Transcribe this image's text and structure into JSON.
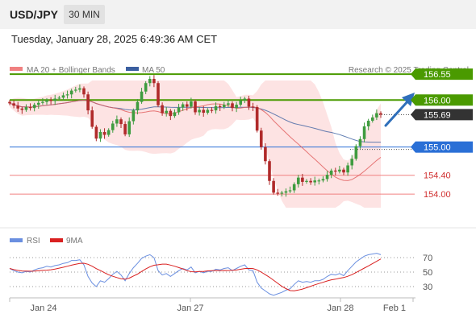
{
  "header": {
    "symbol": "USD/JPY",
    "timeframe": "30 MIN"
  },
  "datetime": "Tuesday, January 28, 2025 6:49:36 AM CET",
  "legend": {
    "ma20_label": "MA 20 + Bollinger Bands",
    "ma50_label": "MA 50",
    "copyright": "Research © 2025 Trading Central",
    "rsi_label": "RSI",
    "rsi_ma_label": "9MA"
  },
  "colors": {
    "up": "#3f9c3f",
    "down": "#b02a2a",
    "ma20": "#e05a5a",
    "ma50": "#3b5fa0",
    "band": "#fde3e3",
    "green_level": "#4a9a00",
    "blue_level": "#2a6fd6",
    "red_level": "#f08080",
    "arrow": "#2f6fba",
    "rsi": "#6a8fe0",
    "rsi_ma": "#d92020"
  },
  "x_axis": [
    "Jan 24",
    "Jan 27",
    "Jan 28",
    "Feb 1"
  ],
  "rsi_levels": [
    "70",
    "50",
    "30"
  ],
  "chart_data": {
    "type": "candlestick",
    "symbol": "USD/JPY",
    "timeframe": "30 MIN",
    "ylim": [
      153.3,
      157.1
    ],
    "price_levels": [
      {
        "value": 156.55,
        "label": "156.55",
        "kind": "resistance"
      },
      {
        "value": 156.0,
        "label": "156.00",
        "kind": "resistance"
      },
      {
        "value": 155.69,
        "label": "155.69",
        "kind": "last_price"
      },
      {
        "value": 155.0,
        "label": "155.00",
        "kind": "pivot"
      },
      {
        "value": 154.4,
        "label": "154.40",
        "kind": "support"
      },
      {
        "value": 154.0,
        "label": "154.00",
        "kind": "support"
      }
    ],
    "close": [
      155.93,
      155.88,
      155.82,
      155.79,
      155.85,
      155.83,
      155.9,
      155.94,
      155.96,
      156.0,
      155.98,
      156.03,
      156.05,
      156.1,
      156.12,
      156.2,
      156.22,
      156.25,
      156.12,
      155.78,
      155.43,
      155.18,
      155.32,
      155.26,
      155.36,
      155.5,
      155.59,
      155.49,
      155.27,
      155.55,
      155.78,
      155.96,
      156.18,
      156.36,
      156.45,
      156.36,
      155.89,
      155.72,
      155.77,
      155.66,
      155.74,
      155.84,
      155.91,
      155.86,
      155.97,
      155.74,
      155.79,
      155.73,
      155.79,
      155.78,
      155.87,
      155.85,
      155.9,
      155.93,
      155.83,
      155.9,
      155.99,
      156.03,
      155.86,
      155.85,
      155.35,
      155.0,
      154.7,
      154.28,
      154.03,
      154.02,
      154.03,
      154.06,
      154.08,
      154.21,
      154.35,
      154.26,
      154.28,
      154.25,
      154.29,
      154.29,
      154.32,
      154.41,
      154.5,
      154.48,
      154.52,
      154.46,
      154.61,
      154.75,
      155.02,
      155.17,
      155.44,
      155.56,
      155.63,
      155.72,
      155.69
    ],
    "rsi": [
      55,
      52,
      50,
      49,
      51,
      50,
      53,
      55,
      56,
      58,
      57,
      59,
      60,
      62,
      63,
      66,
      66,
      67,
      60,
      44,
      35,
      30,
      38,
      36,
      41,
      47,
      51,
      46,
      38,
      48,
      56,
      62,
      69,
      72,
      74,
      70,
      52,
      46,
      48,
      44,
      48,
      52,
      55,
      53,
      57,
      49,
      51,
      49,
      51,
      51,
      54,
      53,
      55,
      56,
      52,
      55,
      58,
      60,
      53,
      52,
      36,
      28,
      24,
      20,
      18,
      20,
      22,
      25,
      27,
      33,
      38,
      36,
      37,
      36,
      38,
      38,
      40,
      44,
      47,
      46,
      48,
      45,
      52,
      58,
      64,
      68,
      72,
      74,
      75,
      76,
      74
    ]
  }
}
